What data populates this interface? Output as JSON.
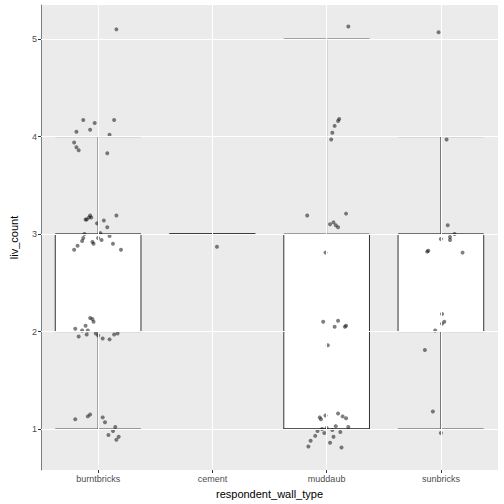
{
  "chart_data": {
    "type": "boxplot",
    "x_label": "respondent_wall_type",
    "y_label": "liv_count",
    "categories": [
      "burntbricks",
      "cement",
      "muddaub",
      "sunbricks"
    ],
    "boxes": [
      [
        1,
        2,
        3,
        3,
        4
      ],
      [
        3,
        3,
        3,
        3,
        3
      ],
      [
        1,
        1,
        1,
        3,
        5
      ],
      [
        1,
        2,
        3,
        3,
        4
      ]
    ],
    "points": [
      [
        0.81,
        4.05
      ],
      [
        0.87,
        4.17
      ],
      [
        0.93,
        4.07
      ],
      [
        0.97,
        4.14
      ],
      [
        1.1,
        4.02
      ],
      [
        1.14,
        4.17
      ],
      [
        1.08,
        3.83
      ],
      [
        0.79,
        3.94
      ],
      [
        0.81,
        3.89
      ],
      [
        0.83,
        3.86
      ],
      [
        1.16,
        5.1
      ],
      [
        0.79,
        2.84
      ],
      [
        0.82,
        2.88
      ],
      [
        0.87,
        2.96
      ],
      [
        0.88,
        3.0
      ],
      [
        0.89,
        3.15
      ],
      [
        0.9,
        3.15
      ],
      [
        0.92,
        3.17
      ],
      [
        0.93,
        3.19
      ],
      [
        0.94,
        3.17
      ],
      [
        0.95,
        2.92
      ],
      [
        0.96,
        2.9
      ],
      [
        0.99,
        3.11
      ],
      [
        1.0,
        2.96
      ],
      [
        1.02,
        3.01
      ],
      [
        1.05,
        3.14
      ],
      [
        1.08,
        3.07
      ],
      [
        1.1,
        2.98
      ],
      [
        1.13,
        2.9
      ],
      [
        1.16,
        3.19
      ],
      [
        1.2,
        2.84
      ],
      [
        1.03,
        2.94
      ],
      [
        0.86,
        2.93
      ],
      [
        0.8,
        2.03
      ],
      [
        0.83,
        1.95
      ],
      [
        0.86,
        2.01
      ],
      [
        0.89,
        2.06
      ],
      [
        0.91,
        2.01
      ],
      [
        0.93,
        2.14
      ],
      [
        0.95,
        2.13
      ],
      [
        0.96,
        2.1
      ],
      [
        0.98,
        1.98
      ],
      [
        1.0,
        1.96
      ],
      [
        1.04,
        1.93
      ],
      [
        1.1,
        1.92
      ],
      [
        1.14,
        1.97
      ],
      [
        1.17,
        1.98
      ],
      [
        0.9,
        1.97
      ],
      [
        0.8,
        1.1
      ],
      [
        0.91,
        1.13
      ],
      [
        0.93,
        1.15
      ],
      [
        1.04,
        1.12
      ],
      [
        1.06,
        1.07
      ],
      [
        1.09,
        0.94
      ],
      [
        1.13,
        0.98
      ],
      [
        1.16,
        0.89
      ],
      [
        1.18,
        0.92
      ],
      [
        1.15,
        1.02
      ],
      [
        2.04,
        2.87
      ],
      [
        3.19,
        5.13
      ],
      [
        3.05,
        4.04
      ],
      [
        3.07,
        4.11
      ],
      [
        3.11,
        4.18
      ],
      [
        3.04,
        3.97
      ],
      [
        3.1,
        4.16
      ],
      [
        2.83,
        3.19
      ],
      [
        3.03,
        3.1
      ],
      [
        3.06,
        3.12
      ],
      [
        3.08,
        3.09
      ],
      [
        3.1,
        3.07
      ],
      [
        3.17,
        3.21
      ],
      [
        2.99,
        2.81
      ],
      [
        3.01,
        1.86
      ],
      [
        3.07,
        2.05
      ],
      [
        3.1,
        2.11
      ],
      [
        3.17,
        2.06
      ],
      [
        3.16,
        2.05
      ],
      [
        2.97,
        2.1
      ],
      [
        2.84,
        0.82
      ],
      [
        2.86,
        0.88
      ],
      [
        2.9,
        0.93
      ],
      [
        2.92,
        0.98
      ],
      [
        2.94,
        1.12
      ],
      [
        2.96,
        1.0
      ],
      [
        2.98,
        0.96
      ],
      [
        3.0,
        1.01
      ],
      [
        3.03,
        0.86
      ],
      [
        3.05,
        0.99
      ],
      [
        3.08,
        1.03
      ],
      [
        3.1,
        1.16
      ],
      [
        3.13,
        0.81
      ],
      [
        3.14,
        1.13
      ],
      [
        3.17,
        1.11
      ],
      [
        3.19,
        1.02
      ],
      [
        2.95,
        1.1
      ],
      [
        3.06,
        0.92
      ],
      [
        3.12,
        0.97
      ],
      [
        2.99,
        1.14
      ],
      [
        3.98,
        5.07
      ],
      [
        4.05,
        3.97
      ],
      [
        3.89,
        2.83
      ],
      [
        3.88,
        2.82
      ],
      [
        4.0,
        2.95
      ],
      [
        4.06,
        3.09
      ],
      [
        4.08,
        2.97
      ],
      [
        4.08,
        2.94
      ],
      [
        4.12,
        3.0
      ],
      [
        4.19,
        2.81
      ],
      [
        3.86,
        1.81
      ],
      [
        3.95,
        2.01
      ],
      [
        4.01,
        2.08
      ],
      [
        4.01,
        2.18
      ],
      [
        4.03,
        2.1
      ],
      [
        3.93,
        1.18
      ],
      [
        4.0,
        0.96
      ]
    ],
    "color": "#000000",
    "ylim": [
      0.58,
      5.35
    ],
    "yticks": [
      1,
      2,
      3,
      4,
      5
    ],
    "grid": true
  }
}
